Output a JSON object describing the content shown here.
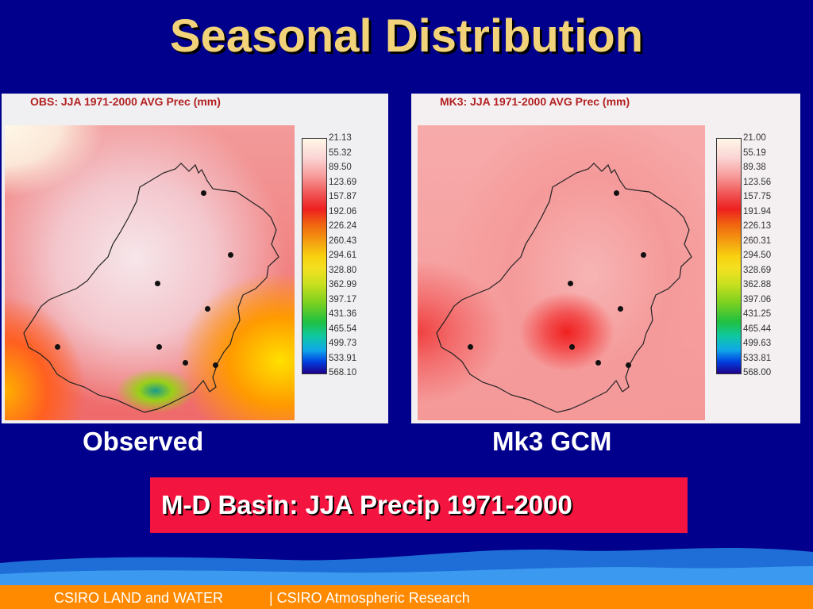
{
  "slide": {
    "title": "Seasonal Distribution"
  },
  "panels": {
    "observed": {
      "title": "OBS: JJA 1971-2000 AVG Prec (mm)",
      "caption": "Observed",
      "legend": [
        "21.13",
        "55.32",
        "89.50",
        "123.69",
        "157.87",
        "192.06",
        "226.24",
        "260.43",
        "294.61",
        "328.80",
        "362.99",
        "397.17",
        "431.36",
        "465.54",
        "499.73",
        "533.91",
        "568.10"
      ]
    },
    "gcm": {
      "title": "MK3: JJA 1971-2000 AVG Prec (mm)",
      "caption": "Mk3 GCM",
      "legend": [
        "21.00",
        "55.19",
        "89.38",
        "123.56",
        "157.75",
        "191.94",
        "226.13",
        "260.31",
        "294.50",
        "328.69",
        "362.88",
        "397.06",
        "431.25",
        "465.44",
        "499.63",
        "533.81",
        "568.00"
      ]
    }
  },
  "banner": {
    "text": "M-D Basin: JJA Precip 1971-2000"
  },
  "footer": {
    "left": "CSIRO LAND and WATER",
    "right": "| CSIRO Atmospheric Research"
  },
  "colors": {
    "background": "#00008c",
    "title": "#f2d37a",
    "banner": "#f3143f",
    "footer": "#ff8a00"
  }
}
